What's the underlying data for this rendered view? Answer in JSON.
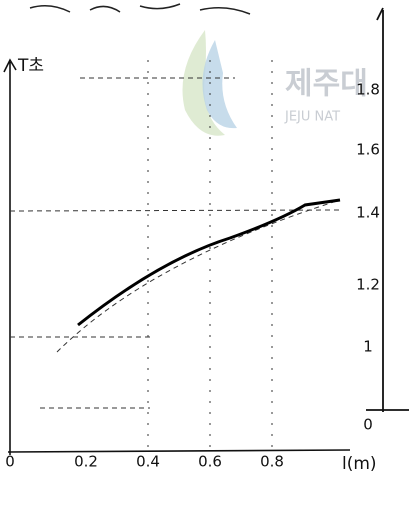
{
  "watermark": {
    "title": "제주대",
    "subtitle": "JEJU NAT"
  },
  "left_graph": {
    "y_label": "T초",
    "x_label": "l(m)",
    "x_ticks": [
      "0",
      "0.2",
      "0.4",
      "0.6",
      "0.8"
    ]
  },
  "right_graph": {
    "y_ticks": [
      "1.8",
      "1.6",
      "1.4",
      "1.2",
      "1",
      "0"
    ]
  }
}
